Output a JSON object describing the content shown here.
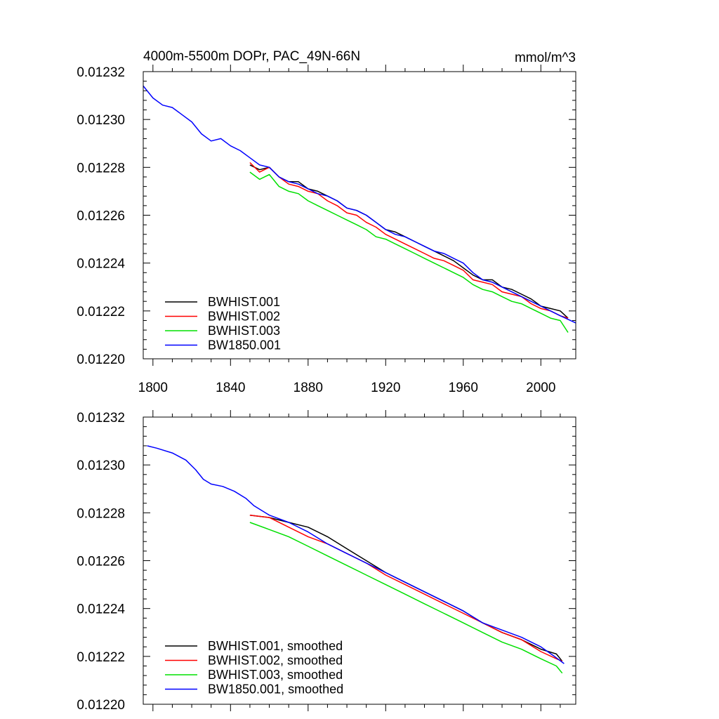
{
  "colors": {
    "BWHIST.001": "#000000",
    "BWHIST.002": "#ff0000",
    "BWHIST.003": "#00e000",
    "BW1850.001": "#0000ff"
  },
  "chart_data": [
    {
      "type": "line",
      "title": "4000m-5500m DOPr, PAC_49N-66N",
      "units": "mmol/m^3",
      "xlim": [
        1795,
        2018
      ],
      "ylim": [
        0.0122,
        0.01232
      ],
      "xticks": [
        1800,
        1840,
        1880,
        1920,
        1960,
        2000
      ],
      "yticks": [
        "0.01220",
        "0.01222",
        "0.01224",
        "0.01226",
        "0.01228",
        "0.01230",
        "0.01232"
      ],
      "show_xtick_labels": true,
      "legend": [
        "BWHIST.001",
        "BWHIST.002",
        "BWHIST.003",
        "BW1850.001"
      ],
      "legend_position": "bottom-left",
      "series": [
        {
          "name": "BWHIST.001",
          "x": [
            1850,
            1855,
            1860,
            1865,
            1870,
            1875,
            1880,
            1885,
            1890,
            1895,
            1900,
            1905,
            1910,
            1915,
            1920,
            1925,
            1930,
            1935,
            1940,
            1945,
            1950,
            1955,
            1960,
            1965,
            1970,
            1975,
            1980,
            1985,
            1990,
            1995,
            2000,
            2005,
            2010,
            2014
          ],
          "y": [
            0.012281,
            0.012279,
            0.01228,
            0.012276,
            0.012274,
            0.012274,
            0.012271,
            0.01227,
            0.012268,
            0.012266,
            0.012263,
            0.012262,
            0.01226,
            0.012257,
            0.012254,
            0.012253,
            0.012251,
            0.012249,
            0.012247,
            0.012245,
            0.012243,
            0.012241,
            0.012238,
            0.012235,
            0.012233,
            0.012233,
            0.01223,
            0.012229,
            0.012227,
            0.012225,
            0.012222,
            0.012221,
            0.01222,
            0.012217
          ]
        },
        {
          "name": "BWHIST.002",
          "x": [
            1850,
            1855,
            1860,
            1865,
            1870,
            1875,
            1880,
            1885,
            1890,
            1895,
            1900,
            1905,
            1910,
            1915,
            1920,
            1925,
            1930,
            1935,
            1940,
            1945,
            1950,
            1955,
            1960,
            1965,
            1970,
            1975,
            1980,
            1985,
            1990,
            1995,
            2000,
            2005,
            2010,
            2014
          ],
          "y": [
            0.012282,
            0.012278,
            0.01228,
            0.012276,
            0.012273,
            0.012272,
            0.01227,
            0.012269,
            0.012266,
            0.012264,
            0.012261,
            0.01226,
            0.012257,
            0.012255,
            0.012252,
            0.01225,
            0.012248,
            0.012246,
            0.012244,
            0.012242,
            0.012241,
            0.012239,
            0.012237,
            0.012233,
            0.012232,
            0.012231,
            0.012228,
            0.012227,
            0.012226,
            0.012223,
            0.012221,
            0.01222,
            0.012218,
            0.012217
          ]
        },
        {
          "name": "BWHIST.003",
          "x": [
            1850,
            1855,
            1860,
            1865,
            1870,
            1875,
            1880,
            1885,
            1890,
            1895,
            1900,
            1905,
            1910,
            1915,
            1920,
            1925,
            1930,
            1935,
            1940,
            1945,
            1950,
            1955,
            1960,
            1965,
            1970,
            1975,
            1980,
            1985,
            1990,
            1995,
            2000,
            2005,
            2010,
            2014
          ],
          "y": [
            0.012278,
            0.012275,
            0.012277,
            0.012272,
            0.01227,
            0.012269,
            0.012266,
            0.012264,
            0.012262,
            0.01226,
            0.012258,
            0.012256,
            0.012254,
            0.012251,
            0.01225,
            0.012248,
            0.012246,
            0.012244,
            0.012242,
            0.01224,
            0.012238,
            0.012236,
            0.012234,
            0.012231,
            0.012229,
            0.012228,
            0.012226,
            0.012224,
            0.012223,
            0.012221,
            0.012219,
            0.012217,
            0.012216,
            0.012211
          ]
        },
        {
          "name": "BW1850.001",
          "x": [
            1795,
            1800,
            1805,
            1810,
            1815,
            1820,
            1825,
            1830,
            1835,
            1840,
            1845,
            1850,
            1855,
            1860,
            1865,
            1870,
            1875,
            1880,
            1885,
            1890,
            1895,
            1900,
            1905,
            1910,
            1915,
            1920,
            1925,
            1930,
            1935,
            1940,
            1945,
            1950,
            1955,
            1960,
            1965,
            1970,
            1975,
            1980,
            1985,
            1990,
            1995,
            2000,
            2005,
            2010,
            2018
          ],
          "y": [
            0.012314,
            0.012309,
            0.012306,
            0.012305,
            0.012302,
            0.012299,
            0.012294,
            0.012291,
            0.012292,
            0.012289,
            0.012287,
            0.012284,
            0.012281,
            0.01228,
            0.012276,
            0.012274,
            0.012273,
            0.012271,
            0.012269,
            0.012268,
            0.012266,
            0.012263,
            0.012262,
            0.01226,
            0.012257,
            0.012254,
            0.012252,
            0.012251,
            0.012249,
            0.012247,
            0.012245,
            0.012244,
            0.012242,
            0.01224,
            0.012236,
            0.012233,
            0.012232,
            0.01223,
            0.012228,
            0.012226,
            0.012224,
            0.012222,
            0.01222,
            0.012218,
            0.012215
          ]
        }
      ]
    },
    {
      "type": "line",
      "title": "",
      "units": "",
      "xlim": [
        1795,
        2018
      ],
      "ylim": [
        0.0122,
        0.01232
      ],
      "xticks": [
        1800,
        1840,
        1880,
        1920,
        1960,
        2000
      ],
      "yticks": [
        "0.01220",
        "0.01222",
        "0.01224",
        "0.01226",
        "0.01228",
        "0.01230",
        "0.01232"
      ],
      "show_xtick_labels": false,
      "legend": [
        "BWHIST.001, smoothed",
        "BWHIST.002, smoothed",
        "BWHIST.003, smoothed",
        "BW1850.001, smoothed"
      ],
      "legend_position": "bottom-left",
      "series": [
        {
          "name": "BWHIST.001, smoothed",
          "x": [
            1850,
            1860,
            1870,
            1880,
            1890,
            1900,
            1910,
            1920,
            1930,
            1940,
            1950,
            1960,
            1970,
            1980,
            1990,
            2000,
            2008,
            2011
          ],
          "y": [
            0.012279,
            0.012278,
            0.012276,
            0.012274,
            0.01227,
            0.012265,
            0.01226,
            0.012255,
            0.012251,
            0.012247,
            0.012243,
            0.012239,
            0.012234,
            0.01223,
            0.012227,
            0.012223,
            0.012221,
            0.012218
          ]
        },
        {
          "name": "BWHIST.002, smoothed",
          "x": [
            1850,
            1860,
            1870,
            1880,
            1890,
            1900,
            1910,
            1920,
            1930,
            1940,
            1950,
            1960,
            1970,
            1980,
            1990,
            2000,
            2008,
            2011
          ],
          "y": [
            0.012279,
            0.012278,
            0.012274,
            0.01227,
            0.012267,
            0.012263,
            0.012259,
            0.012254,
            0.01225,
            0.012246,
            0.012242,
            0.012238,
            0.012234,
            0.01223,
            0.012227,
            0.012222,
            0.012219,
            0.012218
          ]
        },
        {
          "name": "BWHIST.003, smoothed",
          "x": [
            1850,
            1860,
            1870,
            1880,
            1890,
            1900,
            1910,
            1920,
            1930,
            1940,
            1950,
            1960,
            1970,
            1980,
            1990,
            2000,
            2008,
            2011
          ],
          "y": [
            0.012276,
            0.012273,
            0.01227,
            0.012266,
            0.012262,
            0.012258,
            0.012254,
            0.01225,
            0.012246,
            0.012242,
            0.012238,
            0.012234,
            0.01223,
            0.012226,
            0.012223,
            0.012219,
            0.012216,
            0.012213
          ]
        },
        {
          "name": "BW1850.001, smoothed",
          "x": [
            1797,
            1802,
            1810,
            1817,
            1822,
            1826,
            1830,
            1836,
            1842,
            1848,
            1852,
            1860,
            1870,
            1880,
            1890,
            1900,
            1910,
            1920,
            1930,
            1940,
            1950,
            1960,
            1970,
            1980,
            1990,
            2000,
            2007,
            2012
          ],
          "y": [
            0.012308,
            0.012307,
            0.012305,
            0.012302,
            0.012298,
            0.012294,
            0.012292,
            0.012291,
            0.012289,
            0.012286,
            0.012283,
            0.012279,
            0.012276,
            0.012272,
            0.012267,
            0.012263,
            0.012259,
            0.012255,
            0.012251,
            0.012247,
            0.012243,
            0.012239,
            0.012234,
            0.012231,
            0.012228,
            0.012224,
            0.01222,
            0.012217
          ]
        }
      ]
    }
  ]
}
